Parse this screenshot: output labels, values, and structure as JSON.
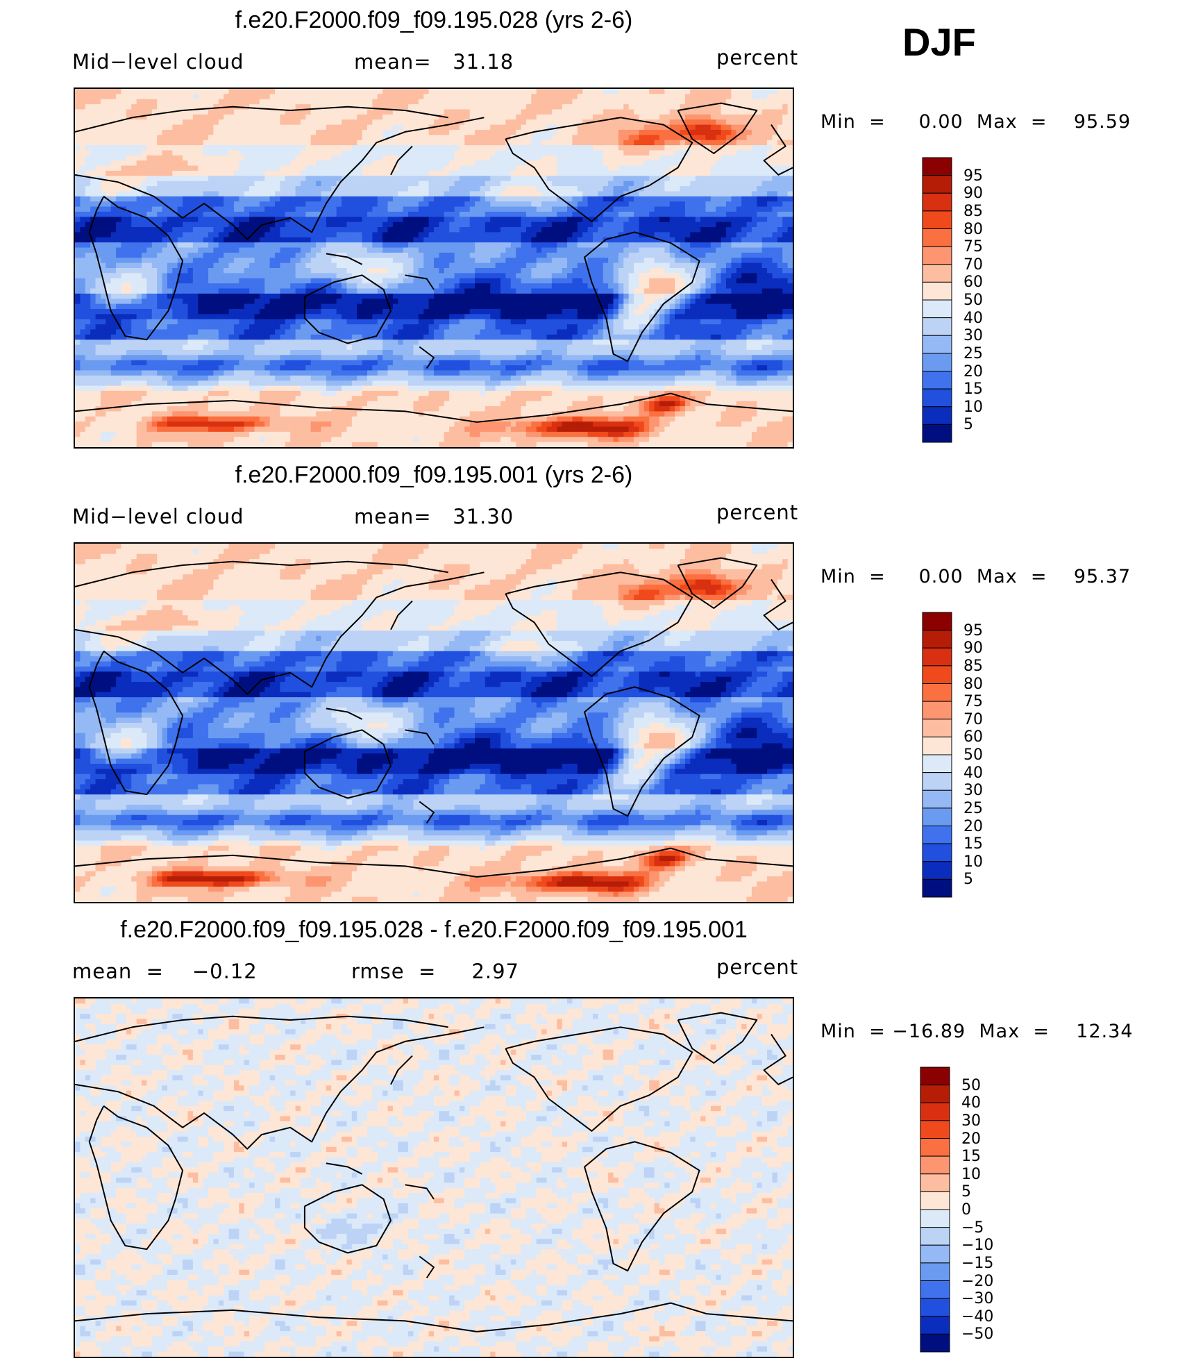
{
  "season": "DJF",
  "panels": [
    {
      "title": "f.e20.F2000.f09_f09.195.028 (yrs 2-6)",
      "left_label": "Mid−level cloud",
      "center_label": "mean=   31.18",
      "right_label": "percent",
      "minmax": "Min  =     0.00  Max  =    95.59",
      "colorbar": "abs",
      "field": "abs"
    },
    {
      "title": "f.e20.F2000.f09_f09.195.001 (yrs 2-6)",
      "left_label": "Mid−level cloud",
      "center_label": "mean=   31.30",
      "right_label": "percent",
      "minmax": "Min  =     0.00  Max  =    95.37",
      "colorbar": "abs",
      "field": "abs"
    },
    {
      "title": "f.e20.F2000.f09_f09.195.028 - f.e20.F2000.f09_f09.195.001",
      "left_label": "mean  =    −0.12",
      "center_label": "rmse  =     2.97",
      "right_label": "percent",
      "minmax": "Min  = −16.89  Max  =    12.34",
      "colorbar": "diff",
      "field": "diff"
    }
  ],
  "chart_data": [
    {
      "type": "heatmap",
      "title": "f.e20.F2000.f09_f09.195.028 (yrs 2-6)",
      "variable": "Mid-level cloud",
      "units": "percent",
      "mean": 31.18,
      "min": 0.0,
      "max": 95.59,
      "levels": [
        5,
        10,
        15,
        20,
        25,
        30,
        40,
        50,
        60,
        70,
        75,
        80,
        85,
        90,
        95
      ],
      "level_labels": [
        "95",
        "90",
        "85",
        "80",
        "75",
        "70",
        "60",
        "50",
        "40",
        "30",
        "25",
        "20",
        "15",
        "10",
        "5"
      ],
      "colors": [
        "#8b0000",
        "#b51d07",
        "#d83010",
        "#f04a1c",
        "#fb7040",
        "#fc9570",
        "#fdbda0",
        "#fde6d6",
        "#dce9f8",
        "#bcd3f6",
        "#95b9f5",
        "#6a9bf0",
        "#3f72ec",
        "#2150df",
        "#0a2dbd",
        "#000f80"
      ]
    },
    {
      "type": "heatmap",
      "title": "f.e20.F2000.f09_f09.195.001 (yrs 2-6)",
      "variable": "Mid-level cloud",
      "units": "percent",
      "mean": 31.3,
      "min": 0.0,
      "max": 95.37,
      "levels": [
        5,
        10,
        15,
        20,
        25,
        30,
        40,
        50,
        60,
        70,
        75,
        80,
        85,
        90,
        95
      ],
      "level_labels": [
        "95",
        "90",
        "85",
        "80",
        "75",
        "70",
        "60",
        "50",
        "40",
        "30",
        "25",
        "20",
        "15",
        "10",
        "5"
      ],
      "colors": [
        "#8b0000",
        "#b51d07",
        "#d83010",
        "#f04a1c",
        "#fb7040",
        "#fc9570",
        "#fdbda0",
        "#fde6d6",
        "#dce9f8",
        "#bcd3f6",
        "#95b9f5",
        "#6a9bf0",
        "#3f72ec",
        "#2150df",
        "#0a2dbd",
        "#000f80"
      ]
    },
    {
      "type": "heatmap",
      "title": "f.e20.F2000.f09_f09.195.028 - f.e20.F2000.f09_f09.195.001",
      "units": "percent",
      "mean": -0.12,
      "rmse": 2.97,
      "min": -16.89,
      "max": 12.34,
      "levels": [
        -50,
        -40,
        -30,
        -20,
        -15,
        -10,
        -5,
        0,
        5,
        10,
        15,
        20,
        30,
        40,
        50
      ],
      "level_labels": [
        "50",
        "40",
        "30",
        "20",
        "15",
        "10",
        "5",
        "0",
        "−5",
        "−10",
        "−15",
        "−20",
        "−30",
        "−40",
        "−50"
      ],
      "colors": [
        "#8b0000",
        "#b51d07",
        "#d83010",
        "#f04a1c",
        "#fb7040",
        "#fc9570",
        "#fdbda0",
        "#fde6d6",
        "#dce9f8",
        "#bcd3f6",
        "#95b9f5",
        "#6a9bf0",
        "#3f72ec",
        "#2150df",
        "#0a2dbd",
        "#000f80"
      ]
    }
  ],
  "palettes": {
    "abs_levels_desc": [
      "95",
      "90",
      "85",
      "80",
      "75",
      "70",
      "60",
      "50",
      "40",
      "30",
      "25",
      "20",
      "15",
      "10",
      "5"
    ],
    "diff_levels_desc": [
      "50",
      "40",
      "30",
      "20",
      "15",
      "10",
      "5",
      "0",
      "−5",
      "−10",
      "−15",
      "−20",
      "−30",
      "−40",
      "−50"
    ],
    "colors_desc": [
      "#8b0000",
      "#b51d07",
      "#d83010",
      "#f04a1c",
      "#fb7040",
      "#fc9570",
      "#fdbda0",
      "#fde6d6",
      "#dce9f8",
      "#bcd3f6",
      "#95b9f5",
      "#6a9bf0",
      "#3f72ec",
      "#2150df",
      "#0a2dbd",
      "#000f80"
    ]
  }
}
